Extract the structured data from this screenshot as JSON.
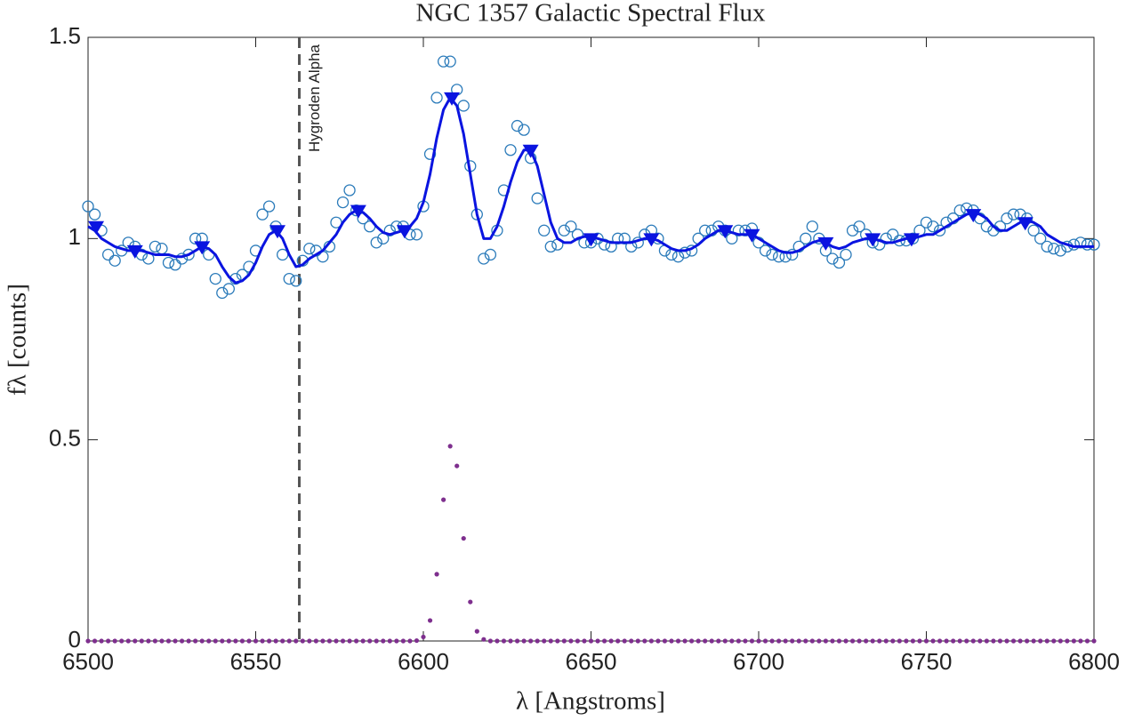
{
  "chart_data": {
    "type": "line",
    "title": "NGC 1357 Galactic Spectral Flux",
    "xlabel": "λ [Angstroms]",
    "ylabel": "fλ [counts]",
    "xlim": [
      6500,
      6800
    ],
    "ylim": [
      0,
      1.5
    ],
    "xticks": [
      6500,
      6550,
      6600,
      6650,
      6700,
      6750,
      6800
    ],
    "yticks": [
      0,
      0.5,
      1,
      1.5
    ],
    "grid": false,
    "vline": {
      "x": 6563,
      "label": "Hygroden Alpha",
      "color": "#555555"
    },
    "x": [
      6500,
      6502,
      6504,
      6506,
      6508,
      6510,
      6512,
      6514,
      6516,
      6518,
      6520,
      6522,
      6524,
      6526,
      6528,
      6530,
      6532,
      6534,
      6536,
      6538,
      6540,
      6542,
      6544,
      6546,
      6548,
      6550,
      6552,
      6554,
      6556,
      6558,
      6560,
      6562,
      6564,
      6566,
      6568,
      6570,
      6572,
      6574,
      6576,
      6578,
      6580,
      6582,
      6584,
      6586,
      6588,
      6590,
      6592,
      6594,
      6596,
      6598,
      6600,
      6602,
      6604,
      6606,
      6608,
      6610,
      6612,
      6614,
      6616,
      6618,
      6620,
      6622,
      6624,
      6626,
      6628,
      6630,
      6632,
      6634,
      6636,
      6638,
      6640,
      6642,
      6644,
      6646,
      6648,
      6650,
      6652,
      6654,
      6656,
      6658,
      6660,
      6662,
      6664,
      6666,
      6668,
      6670,
      6672,
      6674,
      6676,
      6678,
      6680,
      6682,
      6684,
      6686,
      6688,
      6690,
      6692,
      6694,
      6696,
      6698,
      6700,
      6702,
      6704,
      6706,
      6708,
      6710,
      6712,
      6714,
      6716,
      6718,
      6720,
      6722,
      6724,
      6726,
      6728,
      6730,
      6732,
      6734,
      6736,
      6738,
      6740,
      6742,
      6744,
      6746,
      6748,
      6750,
      6752,
      6754,
      6756,
      6758,
      6760,
      6762,
      6764,
      6766,
      6768,
      6770,
      6772,
      6774,
      6776,
      6778,
      6780,
      6782,
      6784,
      6786,
      6788,
      6790,
      6792,
      6794,
      6796,
      6798,
      6800
    ],
    "series": [
      {
        "style": "circles",
        "color": "#2b7bba",
        "values": [
          1.08,
          1.06,
          1.02,
          0.96,
          0.945,
          0.97,
          0.99,
          0.98,
          0.96,
          0.95,
          0.98,
          0.975,
          0.94,
          0.935,
          0.95,
          0.96,
          1.0,
          1.0,
          0.96,
          0.9,
          0.865,
          0.875,
          0.9,
          0.91,
          0.93,
          0.97,
          1.06,
          1.08,
          1.03,
          0.96,
          0.9,
          0.895,
          0.945,
          0.975,
          0.97,
          0.955,
          0.98,
          1.04,
          1.09,
          1.12,
          1.07,
          1.05,
          1.03,
          0.99,
          1.0,
          1.02,
          1.03,
          1.03,
          1.01,
          1.01,
          1.08,
          1.21,
          1.35,
          1.44,
          1.44,
          1.37,
          1.33,
          1.18,
          1.06,
          0.95,
          0.96,
          1.02,
          1.12,
          1.22,
          1.28,
          1.27,
          1.2,
          1.1,
          1.02,
          0.98,
          0.985,
          1.02,
          1.03,
          1.01,
          0.99,
          0.99,
          1.0,
          0.985,
          0.98,
          1.0,
          1.0,
          0.98,
          0.99,
          1.01,
          1.02,
          1.0,
          0.97,
          0.96,
          0.955,
          0.965,
          0.97,
          1.0,
          1.02,
          1.02,
          1.03,
          1.02,
          1.0,
          1.02,
          1.02,
          1.025,
          0.99,
          0.97,
          0.96,
          0.955,
          0.955,
          0.96,
          0.98,
          1.0,
          1.03,
          1.0,
          0.97,
          0.95,
          0.94,
          0.96,
          1.02,
          1.03,
          1.01,
          0.99,
          0.985,
          1.0,
          1.01,
          0.995,
          0.995,
          1.0,
          1.02,
          1.04,
          1.03,
          1.02,
          1.04,
          1.05,
          1.07,
          1.075,
          1.07,
          1.05,
          1.03,
          1.02,
          1.03,
          1.05,
          1.06,
          1.06,
          1.05,
          1.02,
          1.0,
          0.98,
          0.975,
          0.97,
          0.98,
          0.985,
          0.99,
          0.985,
          0.985
        ]
      },
      {
        "style": "line",
        "color": "#0a14e0",
        "values": [
          1.03,
          1.02,
          1.0,
          0.99,
          0.98,
          0.975,
          0.97,
          0.97,
          0.97,
          0.965,
          0.96,
          0.96,
          0.96,
          0.955,
          0.955,
          0.96,
          0.97,
          0.98,
          0.975,
          0.96,
          0.93,
          0.905,
          0.89,
          0.895,
          0.91,
          0.94,
          0.98,
          1.01,
          1.02,
          1.0,
          0.96,
          0.93,
          0.935,
          0.95,
          0.96,
          0.97,
          0.99,
          1.01,
          1.04,
          1.06,
          1.07,
          1.065,
          1.05,
          1.03,
          1.015,
          1.01,
          1.015,
          1.02,
          1.03,
          1.05,
          1.09,
          1.16,
          1.25,
          1.32,
          1.35,
          1.33,
          1.26,
          1.16,
          1.06,
          1.0,
          1.0,
          1.03,
          1.08,
          1.14,
          1.19,
          1.22,
          1.22,
          1.18,
          1.11,
          1.04,
          1.0,
          0.99,
          0.99,
          1.0,
          1.005,
          1.005,
          1.0,
          0.995,
          0.99,
          0.99,
          0.99,
          0.99,
          0.995,
          1.0,
          1.0,
          0.995,
          0.985,
          0.975,
          0.97,
          0.97,
          0.975,
          0.985,
          1.0,
          1.01,
          1.02,
          1.02,
          1.015,
          1.01,
          1.01,
          1.01,
          1.0,
          0.99,
          0.98,
          0.97,
          0.965,
          0.965,
          0.97,
          0.98,
          0.99,
          0.995,
          0.99,
          0.98,
          0.975,
          0.98,
          0.99,
          0.995,
          1.0,
          1.0,
          0.995,
          0.99,
          0.99,
          0.995,
          1.0,
          1.0,
          1.005,
          1.01,
          1.01,
          1.02,
          1.03,
          1.04,
          1.05,
          1.06,
          1.065,
          1.06,
          1.05,
          1.03,
          1.02,
          1.02,
          1.03,
          1.04,
          1.045,
          1.04,
          1.03,
          1.01,
          1.0,
          0.99,
          0.985,
          0.98,
          0.98,
          0.98,
          0.98
        ]
      },
      {
        "style": "triangles",
        "color": "#0a14e0",
        "x": [
          6502.4,
          6514,
          6534,
          6556.5,
          6580.6,
          6594.4,
          6608.5,
          6632,
          6650,
          6668,
          6690,
          6698,
          6720,
          6734,
          6745.6,
          6764,
          6779.5
        ],
        "values": [
          1.03,
          0.97,
          0.98,
          1.02,
          1.07,
          1.02,
          1.35,
          1.22,
          1.0,
          1.0,
          1.02,
          1.01,
          0.99,
          1.0,
          1.0,
          1.06,
          1.04
        ]
      },
      {
        "style": "dots",
        "color": "#7e2f8e",
        "values": [
          0,
          0,
          0,
          0,
          0,
          0,
          0,
          0,
          0,
          0,
          0,
          0,
          0,
          0,
          0,
          0,
          0,
          0,
          0,
          0,
          0,
          0,
          0,
          0,
          0,
          0,
          0,
          0,
          0,
          0,
          0,
          0,
          0,
          0,
          0,
          0,
          0,
          0,
          0,
          0,
          0,
          0,
          0,
          0,
          0,
          0,
          0,
          0,
          0,
          0.001,
          0.01,
          0.051,
          0.166,
          0.351,
          0.484,
          0.435,
          0.255,
          0.097,
          0.024,
          0.004,
          0,
          0,
          0,
          0,
          0,
          0,
          0,
          0,
          0,
          0,
          0,
          0,
          0,
          0,
          0,
          0,
          0,
          0,
          0,
          0,
          0,
          0,
          0,
          0,
          0,
          0,
          0,
          0,
          0,
          0,
          0,
          0,
          0,
          0,
          0,
          0,
          0,
          0,
          0,
          0,
          0,
          0,
          0,
          0,
          0,
          0,
          0,
          0,
          0,
          0,
          0,
          0,
          0,
          0,
          0,
          0,
          0,
          0,
          0,
          0,
          0,
          0,
          0,
          0,
          0,
          0,
          0,
          0,
          0,
          0,
          0,
          0,
          0,
          0,
          0,
          0,
          0,
          0,
          0,
          0,
          0,
          0,
          0,
          0,
          0,
          0,
          0,
          0,
          0,
          0,
          0
        ]
      }
    ]
  }
}
